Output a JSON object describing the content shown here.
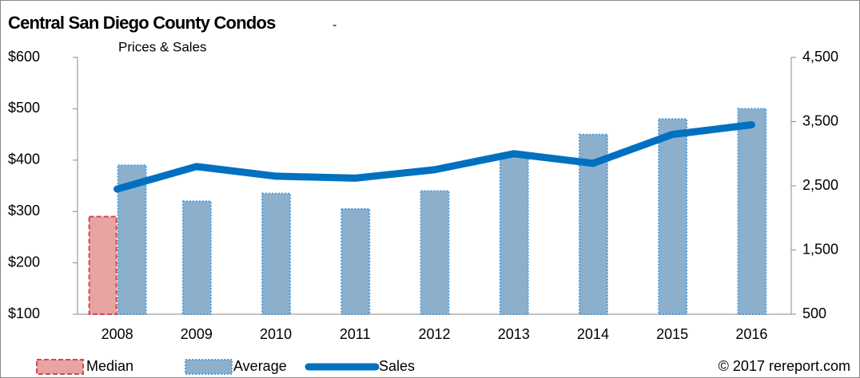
{
  "chart_data": {
    "type": "bar_line",
    "title": "Central San Diego County Condos",
    "title_dash": "-",
    "subtitle": "Prices & Sales",
    "source": "© 2017 rereport.com",
    "categories": [
      "2008",
      "2009",
      "2010",
      "2011",
      "2012",
      "2013",
      "2014",
      "2015",
      "2016"
    ],
    "series": [
      {
        "name": "Median",
        "type": "bar",
        "color": "#e8a3a3",
        "border": "#d9474a",
        "values": [
          290,
          null,
          null,
          null,
          null,
          null,
          null,
          null,
          null
        ]
      },
      {
        "name": "Average",
        "type": "bar",
        "color": "#8cb0cc",
        "border": "#4b9be0",
        "values": [
          390,
          320,
          335,
          305,
          340,
          410,
          450,
          480,
          500
        ]
      },
      {
        "name": "Sales",
        "type": "line",
        "axis": "y2",
        "color": "#0070c0",
        "values": [
          2450,
          2800,
          2650,
          2620,
          2750,
          3000,
          2850,
          3300,
          3450
        ]
      }
    ],
    "ylim": [
      100,
      600
    ],
    "yticks": [
      {
        "value": 100,
        "label": "$100"
      },
      {
        "value": 200,
        "label": "$200"
      },
      {
        "value": 300,
        "label": "$300"
      },
      {
        "value": 400,
        "label": "$400"
      },
      {
        "value": 500,
        "label": "$500"
      },
      {
        "value": 600,
        "label": "$600"
      }
    ],
    "y2lim": [
      500,
      4500
    ],
    "y2ticks": [
      500,
      {
        "value": 1500,
        "label": "1,500"
      },
      {
        "value": 2500,
        "label": "2,500"
      },
      {
        "value": 3500,
        "label": "3,500"
      },
      {
        "value": 4500,
        "label": "4,500"
      }
    ],
    "legend": "bottom"
  }
}
